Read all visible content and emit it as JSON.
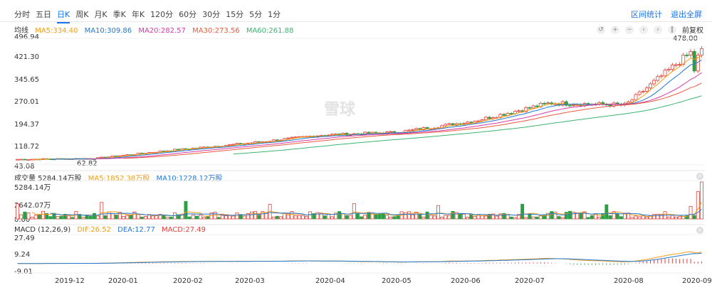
{
  "tabs": [
    "分时",
    "五日",
    "日K",
    "周K",
    "月K",
    "季K",
    "年K",
    "120分",
    "60分",
    "30分",
    "15分",
    "5分",
    "1分"
  ],
  "active_tab": "日K",
  "links": {
    "interval_stats": "区间统计",
    "exit_fullscreen": "退出全屏"
  },
  "ma_legend": {
    "label": "均线",
    "ma5": "MA5:334.40",
    "ma10": "MA10:309.86",
    "ma20": "MA20:282.57",
    "ma30": "MA30:273.56",
    "ma60": "MA60:261.88"
  },
  "colors": {
    "ma5": "#f39c12",
    "ma10": "#1f77d4",
    "ma20": "#d63aa8",
    "ma30": "#e85a3c",
    "ma60": "#3cb371",
    "up": "#e0403a",
    "down": "#2e9e45",
    "dif": "#f39c12",
    "dea": "#1f77d4",
    "macd": "#e0403a"
  },
  "adjust_label": "前复权",
  "price_axis": [
    "496.94",
    "421.30",
    "345.65",
    "270.01",
    "194.37",
    "118.72",
    "43.08"
  ],
  "price_max_label": "478.00",
  "price_min_label": "62.82",
  "volume_legend": {
    "label": "成交量 5284.14万股",
    "ma5": "MA5:1852.38万股",
    "ma10": "MA10:1228.12万股"
  },
  "volume_axis": [
    "5284.14万",
    "2642.07万",
    "0.00"
  ],
  "macd_legend": {
    "label": "MACD (12,26,9)",
    "dif": "DIF:26.52",
    "dea": "DEA:12.77",
    "macd": "MACD:27.49"
  },
  "macd_axis": [
    "27.49",
    "9.24",
    "-9.01"
  ],
  "dates": [
    "2019-12",
    "2020-01",
    "2020-02",
    "2020-03",
    "2020-04",
    "2020-05",
    "2020-06",
    "2020-07",
    "2020-08",
    "2020-09"
  ],
  "watermark": "雪球",
  "chart_data": {
    "type": "candlestick",
    "price_range": [
      43.08,
      496.94
    ],
    "candle_count": 188,
    "approx_close_trend": [
      {
        "date": "2019-12",
        "close": 63
      },
      {
        "date": "2020-01",
        "close": 66
      },
      {
        "date": "2020-02",
        "close": 95
      },
      {
        "date": "2020-03",
        "close": 120
      },
      {
        "date": "2020-04",
        "close": 150
      },
      {
        "date": "2020-05",
        "close": 160
      },
      {
        "date": "2020-06",
        "close": 200
      },
      {
        "date": "2020-07",
        "close": 265
      },
      {
        "date": "2020-08",
        "close": 258
      },
      {
        "date": "2020-09",
        "close": 478
      }
    ],
    "volume_max": 5284.14,
    "macd_range": [
      -9.01,
      27.49
    ]
  }
}
